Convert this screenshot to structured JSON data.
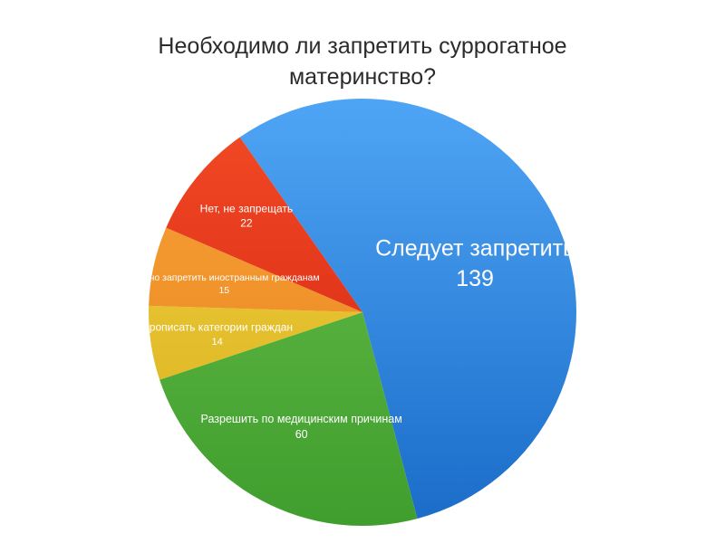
{
  "chart_data": {
    "type": "pie",
    "title_lines": [
      "Необходимо ли запретить суррогатное",
      "материнство?"
    ],
    "start_angle_deg": 235,
    "direction": "clockwise",
    "slices": [
      {
        "label": "Следует запретить",
        "value": 139,
        "color_top": "#4fa5f5",
        "color_bottom": "#1a6cc8"
      },
      {
        "label": "Разрешить по медицинским причинам",
        "value": 60,
        "color_top": "#6cc04a",
        "color_bottom": "#3f9e2e"
      },
      {
        "label": "Прописать категории граждан",
        "value": 14,
        "color_top": "#f4d43e",
        "color_bottom": "#d7ad1e"
      },
      {
        "label": "Нет, но запретить иностранным гражданам",
        "value": 15,
        "color_top": "#f8a43a",
        "color_bottom": "#e8801a"
      },
      {
        "label": "Нет, не запрещать",
        "value": 22,
        "color_top": "#f34b26",
        "color_bottom": "#d0200f"
      }
    ]
  }
}
